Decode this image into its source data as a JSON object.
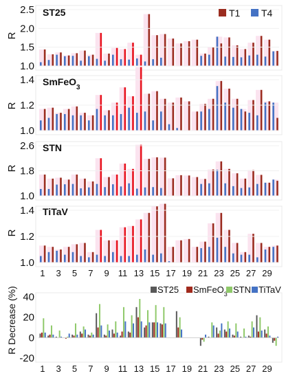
{
  "figure": {
    "panel_labels": [
      "ST25",
      "SmFeO3",
      "STN",
      "TiTaV"
    ],
    "r_axis_label": "R",
    "decrease_axis_label": "R Decrease (%)",
    "x_tick_labels": [
      "1",
      "3",
      "5",
      "7",
      "9",
      "11",
      "13",
      "15",
      "17",
      "19",
      "21",
      "23",
      "25",
      "27",
      "29"
    ],
    "legend_top": [
      "T1",
      "T4"
    ],
    "legend_bottom": [
      "ST25",
      "SmFeO3",
      "STN",
      "TiTaV"
    ]
  },
  "chart_data": [
    {
      "type": "bar",
      "panel": "ST25",
      "categories": [
        1,
        2,
        3,
        4,
        5,
        6,
        7,
        8,
        9,
        10,
        11,
        12,
        13,
        14,
        15,
        16,
        17,
        18,
        19,
        20,
        21,
        22,
        23,
        24,
        25,
        26,
        27,
        28,
        29,
        30
      ],
      "ylabel": "R",
      "ylim": [
        1.0,
        2.5
      ],
      "yticks": [
        1.0,
        1.5,
        2.0,
        2.5
      ],
      "legend": "top-right",
      "series": [
        {
          "name": "T1",
          "color": "#9b2d20",
          "values": [
            1.44,
            1.31,
            1.36,
            1.28,
            1.34,
            1.41,
            1.3,
            1.88,
            1.33,
            1.48,
            1.45,
            1.62,
            1.3,
            2.38,
            1.82,
            1.85,
            1.73,
            1.6,
            1.66,
            1.7,
            1.33,
            1.5,
            1.6,
            1.76,
            1.55,
            1.45,
            1.62,
            1.8,
            1.7,
            1.4
          ]
        },
        {
          "name": "T4",
          "color": "#4472c4",
          "values": [
            1.1,
            1.16,
            1.3,
            1.26,
            1.27,
            1.14,
            1.26,
            1.19,
            1.14,
            1.3,
            1.18,
            1.17,
            1.2,
            1.12,
            1.18,
            1.22,
            1.0,
            1.0,
            1.0,
            1.0,
            1.27,
            1.3,
            1.78,
            1.25,
            1.24,
            1.23,
            1.28,
            1.3,
            1.25,
            1.39
          ]
        }
      ],
      "highlight_color": "#e8141f"
    },
    {
      "type": "bar",
      "panel": "SmFeO3",
      "categories": [
        1,
        2,
        3,
        4,
        5,
        6,
        7,
        8,
        9,
        10,
        11,
        12,
        13,
        14,
        15,
        16,
        17,
        18,
        19,
        20,
        21,
        22,
        23,
        24,
        25,
        26,
        27,
        28,
        29,
        30
      ],
      "ylabel": "R",
      "ylim": [
        1.0,
        1.4
      ],
      "yticks": [
        1.0,
        1.2,
        1.4
      ],
      "series": [
        {
          "name": "T1",
          "color": "#9b2d20",
          "values": [
            1.17,
            1.18,
            1.14,
            1.17,
            1.19,
            1.14,
            1.12,
            1.28,
            1.16,
            1.22,
            1.34,
            1.27,
            1.5,
            1.29,
            1.31,
            1.25,
            1.22,
            1.26,
            1.23,
            1.15,
            1.21,
            1.25,
            1.39,
            1.33,
            1.25,
            1.15,
            1.24,
            1.32,
            1.23,
            1.1
          ]
        },
        {
          "name": "T4",
          "color": "#4472c4",
          "values": [
            1.08,
            1.1,
            1.13,
            1.13,
            1.12,
            1.12,
            1.08,
            1.17,
            1.12,
            1.12,
            1.13,
            1.18,
            1.14,
            1.15,
            1.08,
            1.15,
            1.05,
            1.02,
            1.0,
            1.0,
            1.15,
            1.17,
            1.35,
            1.22,
            1.18,
            1.17,
            1.14,
            1.12,
            1.22,
            1.22
          ]
        }
      ],
      "highlight_color": "#e8141f"
    },
    {
      "type": "bar",
      "panel": "STN",
      "categories": [
        1,
        2,
        3,
        4,
        5,
        6,
        7,
        8,
        9,
        10,
        11,
        12,
        13,
        14,
        15,
        16,
        17,
        18,
        19,
        20,
        21,
        22,
        23,
        24,
        25,
        26,
        27,
        28,
        29,
        30
      ],
      "ylabel": "R",
      "ylim": [
        1.0,
        2.6
      ],
      "yticks": [
        1.0,
        1.8,
        2.6
      ],
      "series": [
        {
          "name": "T1",
          "color": "#9b2d20",
          "values": [
            1.68,
            1.55,
            1.58,
            1.52,
            1.68,
            1.55,
            1.46,
            2.2,
            1.6,
            1.68,
            2.03,
            1.86,
            2.63,
            2.18,
            2.23,
            2.22,
            1.56,
            1.66,
            1.65,
            1.6,
            1.54,
            1.84,
            2.1,
            1.86,
            1.72,
            1.55,
            1.82,
            1.67,
            1.42,
            1.48
          ]
        },
        {
          "name": "T4",
          "color": "#4472c4",
          "values": [
            1.22,
            1.22,
            1.36,
            1.37,
            1.38,
            1.24,
            1.27,
            1.38,
            1.28,
            1.37,
            1.3,
            1.4,
            1.23,
            1.27,
            1.28,
            1.25,
            1.0,
            1.0,
            1.0,
            1.0,
            1.38,
            1.4,
            1.83,
            1.4,
            1.31,
            1.25,
            1.27,
            1.38,
            1.42,
            1.52
          ]
        }
      ],
      "highlight_color": "#e8141f"
    },
    {
      "type": "bar",
      "panel": "TiTaV",
      "categories": [
        1,
        2,
        3,
        4,
        5,
        6,
        7,
        8,
        9,
        10,
        11,
        12,
        13,
        14,
        15,
        16,
        17,
        18,
        19,
        20,
        21,
        22,
        23,
        24,
        25,
        26,
        27,
        28,
        29,
        30
      ],
      "ylabel": "R",
      "ylim": [
        1.0,
        1.4
      ],
      "yticks": [
        1.0,
        1.2,
        1.4
      ],
      "series": [
        {
          "name": "T1",
          "color": "#9b2d20",
          "values": [
            1.13,
            1.12,
            1.1,
            1.12,
            1.14,
            1.15,
            1.08,
            1.25,
            1.17,
            1.17,
            1.27,
            1.28,
            1.33,
            1.38,
            1.43,
            1.45,
            1.12,
            1.17,
            1.18,
            1.12,
            1.16,
            1.3,
            1.38,
            1.25,
            1.15,
            1.08,
            1.22,
            1.15,
            1.12,
            1.13
          ]
        },
        {
          "name": "T4",
          "color": "#4472c4",
          "values": [
            1.05,
            1.08,
            1.09,
            1.06,
            1.08,
            1.05,
            1.04,
            1.06,
            1.05,
            1.08,
            1.05,
            1.05,
            1.06,
            1.1,
            1.06,
            1.07,
            1.01,
            1.0,
            1.0,
            1.0,
            1.11,
            1.12,
            1.19,
            1.12,
            1.07,
            1.06,
            1.06,
            1.04,
            1.1,
            1.12
          ]
        }
      ],
      "highlight_color": "#e8141f"
    },
    {
      "type": "bar",
      "panel": "R Decrease",
      "categories": [
        1,
        2,
        3,
        4,
        5,
        6,
        7,
        8,
        9,
        10,
        11,
        12,
        13,
        14,
        15,
        16,
        17,
        18,
        19,
        20,
        21,
        22,
        23,
        24,
        25,
        26,
        27,
        28,
        29,
        30
      ],
      "ylabel": "R Decrease (%)",
      "ylim": [
        -20,
        40
      ],
      "yticks": [
        -20,
        0,
        20,
        40
      ],
      "legend": "top-right",
      "series": [
        {
          "name": "ST25",
          "color": "#595959",
          "values": [
            4,
            2,
            1,
            0,
            3,
            6,
            3,
            24,
            3,
            8,
            2,
            6,
            30,
            10,
            15,
            14,
            0,
            26,
            0,
            0,
            -8,
            1,
            10,
            8,
            3,
            1,
            2,
            22,
            8,
            -5
          ]
        },
        {
          "name": "SmFeO3",
          "color": "#a12a1d",
          "values": [
            5,
            3,
            0,
            -1,
            2,
            4,
            2,
            10,
            2,
            4,
            6,
            5,
            20,
            12,
            15,
            13,
            0,
            10,
            0,
            0,
            -2,
            0,
            4,
            6,
            2,
            0,
            1,
            6,
            4,
            -3
          ]
        },
        {
          "name": "STN",
          "color": "#8fc96a",
          "values": [
            19,
            12,
            7,
            1,
            14,
            11,
            5,
            33,
            13,
            16,
            30,
            22,
            38,
            27,
            32,
            30,
            0,
            20,
            0,
            0,
            -4,
            15,
            7,
            16,
            14,
            9,
            16,
            20,
            11,
            -8
          ]
        },
        {
          "name": "TiTaV",
          "color": "#4472c4",
          "values": [
            5,
            3,
            1,
            4,
            3,
            8,
            3,
            12,
            7,
            5,
            16,
            14,
            16,
            15,
            15,
            14,
            0,
            8,
            0,
            0,
            3,
            12,
            14,
            9,
            6,
            1,
            10,
            7,
            2,
            1
          ]
        }
      ]
    }
  ]
}
